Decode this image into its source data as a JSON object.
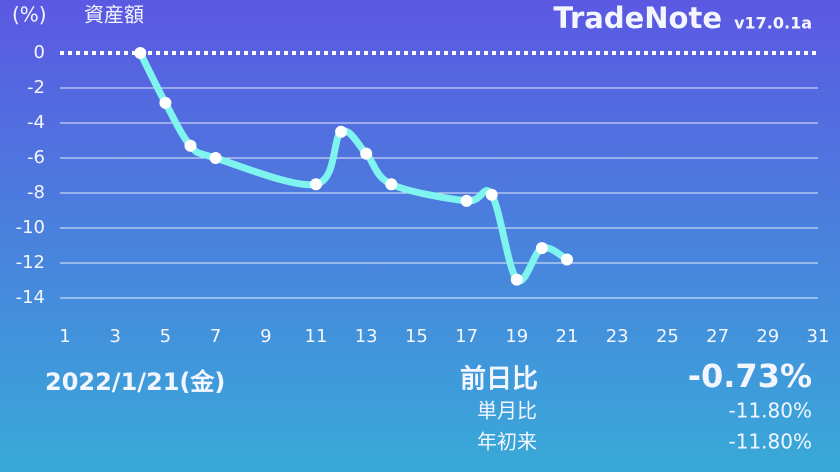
{
  "app": {
    "name": "TradeNote",
    "version": "v17.0.1a"
  },
  "chart_data": {
    "type": "line",
    "title": "資産額",
    "y_label": "(%)",
    "x": [
      4,
      5,
      6,
      7,
      11,
      12,
      13,
      14,
      17,
      18,
      19,
      20,
      21
    ],
    "values": [
      0,
      -2.85,
      -5.3,
      -6.0,
      -7.5,
      -4.5,
      -5.75,
      -7.5,
      -8.45,
      -8.1,
      -12.95,
      -11.15,
      -11.8
    ],
    "color": "#7ff3ee",
    "xlim": [
      1,
      31
    ],
    "xticks": [
      1,
      3,
      5,
      7,
      9,
      11,
      13,
      15,
      17,
      19,
      21,
      23,
      25,
      27,
      29,
      31
    ],
    "ylim": [
      -14,
      0
    ],
    "yticks": [
      0,
      -2,
      -4,
      -6,
      -8,
      -10,
      -12,
      -14
    ],
    "grid": true
  },
  "summary": {
    "date": "2022/1/21(金)",
    "daily_label": "前日比",
    "daily_value": "-0.73%",
    "month_label": "単月比",
    "month_value": "-11.80%",
    "ytd_label": "年初来",
    "ytd_value": "-11.80%"
  }
}
